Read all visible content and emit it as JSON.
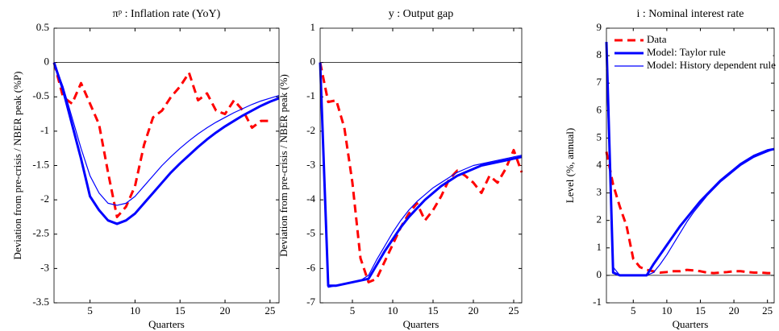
{
  "chart_data": [
    {
      "type": "line",
      "title": "πᵖ : Inflation rate (YoY)",
      "x_label": "Quarters",
      "y_label": "Deviation from pre-crisis / NBER peak (%P)",
      "x": [
        1,
        2,
        3,
        4,
        5,
        6,
        7,
        8,
        9,
        10,
        11,
        12,
        13,
        14,
        15,
        16,
        17,
        18,
        19,
        20,
        21,
        22,
        23,
        24,
        25,
        26
      ],
      "xlim": [
        1,
        26
      ],
      "xticks": [
        5,
        10,
        15,
        20,
        25
      ],
      "ylim": [
        -3.5,
        0.5
      ],
      "yticks": [
        0.5,
        0,
        -0.5,
        -1,
        -1.5,
        -2,
        -2.5,
        -3,
        -3.5
      ],
      "zero_line": true,
      "series": [
        {
          "color": "#ff0000",
          "dashed": true,
          "line_width": 3,
          "values": [
            0,
            -0.5,
            -0.6,
            -0.3,
            -0.6,
            -0.9,
            -1.6,
            -2.25,
            -2.1,
            -1.8,
            -1.2,
            -0.8,
            -0.7,
            -0.5,
            -0.35,
            -0.15,
            -0.55,
            -0.45,
            -0.7,
            -0.75,
            -0.55,
            -0.7,
            -0.95,
            -0.85,
            -0.85,
            null
          ]
        },
        {
          "color": "#0000ff",
          "dashed": false,
          "line_width": 3,
          "values": [
            0,
            -0.4,
            -0.9,
            -1.4,
            -1.95,
            -2.15,
            -2.3,
            -2.35,
            -2.3,
            -2.2,
            -2.05,
            -1.9,
            -1.75,
            -1.6,
            -1.47,
            -1.35,
            -1.23,
            -1.12,
            -1.02,
            -0.93,
            -0.85,
            -0.77,
            -0.7,
            -0.63,
            -0.57,
            -0.52
          ]
        },
        {
          "color": "#0000ff",
          "dashed": false,
          "line_width": 1.2,
          "values": [
            0,
            -0.35,
            -0.8,
            -1.25,
            -1.65,
            -1.9,
            -2.05,
            -2.08,
            -2.05,
            -1.95,
            -1.8,
            -1.65,
            -1.5,
            -1.37,
            -1.25,
            -1.14,
            -1.04,
            -0.95,
            -0.87,
            -0.8,
            -0.73,
            -0.67,
            -0.61,
            -0.56,
            -0.52,
            -0.48
          ]
        }
      ]
    },
    {
      "type": "line",
      "title": "y : Output gap",
      "x_label": "Quarters",
      "y_label": "Deviation from pre-crisis / NBER peak (%)",
      "x": [
        1,
        2,
        3,
        4,
        5,
        6,
        7,
        8,
        9,
        10,
        11,
        12,
        13,
        14,
        15,
        16,
        17,
        18,
        19,
        20,
        21,
        22,
        23,
        24,
        25,
        26
      ],
      "xlim": [
        1,
        26
      ],
      "xticks": [
        5,
        10,
        15,
        20,
        25
      ],
      "ylim": [
        -7,
        1
      ],
      "yticks": [
        1,
        0,
        -1,
        -2,
        -3,
        -4,
        -5,
        -6,
        -7
      ],
      "zero_line": true,
      "series": [
        {
          "color": "#ff0000",
          "dashed": true,
          "line_width": 3,
          "values": [
            0,
            -1.15,
            -1.1,
            -1.9,
            -3.5,
            -5.7,
            -6.4,
            -6.3,
            -5.8,
            -5.3,
            -4.8,
            -4.4,
            -4.1,
            -4.6,
            -4.3,
            -3.9,
            -3.4,
            -3.15,
            -3.3,
            -3.5,
            -3.8,
            -3.3,
            -3.5,
            -3.1,
            -2.55,
            -3.2
          ]
        },
        {
          "color": "#0000ff",
          "dashed": false,
          "line_width": 3,
          "values": [
            0,
            -6.5,
            -6.5,
            -6.45,
            -6.4,
            -6.35,
            -6.3,
            -5.9,
            -5.5,
            -5.15,
            -4.8,
            -4.5,
            -4.25,
            -4.0,
            -3.8,
            -3.6,
            -3.45,
            -3.3,
            -3.2,
            -3.1,
            -3.0,
            -2.95,
            -2.9,
            -2.85,
            -2.8,
            -2.75
          ]
        },
        {
          "color": "#0000ff",
          "dashed": false,
          "line_width": 1.2,
          "values": [
            0,
            -6.55,
            -6.5,
            -6.45,
            -6.4,
            -6.35,
            -6.2,
            -5.75,
            -5.35,
            -4.95,
            -4.6,
            -4.3,
            -4.05,
            -3.85,
            -3.65,
            -3.5,
            -3.35,
            -3.2,
            -3.1,
            -3.0,
            -2.95,
            -2.9,
            -2.85,
            -2.8,
            -2.75,
            -2.7
          ]
        }
      ]
    },
    {
      "type": "line",
      "title": "i : Nominal interest rate",
      "x_label": "Quarters",
      "y_label": "Level (%, annual)",
      "x": [
        1,
        2,
        3,
        4,
        5,
        6,
        7,
        8,
        9,
        10,
        11,
        12,
        13,
        14,
        15,
        16,
        17,
        18,
        19,
        20,
        21,
        22,
        23,
        24,
        25,
        26
      ],
      "xlim": [
        1,
        26
      ],
      "xticks": [
        5,
        10,
        15,
        20,
        25
      ],
      "ylim": [
        -1,
        9
      ],
      "yticks": [
        -1,
        0,
        1,
        2,
        3,
        4,
        5,
        6,
        7,
        8,
        9
      ],
      "zero_line": true,
      "legend": "upper left",
      "series": [
        {
          "name": "Data",
          "color": "#ff0000",
          "dashed": true,
          "line_width": 3,
          "values": [
            4.5,
            3.3,
            2.5,
            1.8,
            0.6,
            0.3,
            0.2,
            0.15,
            0.1,
            0.12,
            0.15,
            0.15,
            0.2,
            0.18,
            0.15,
            0.1,
            0.08,
            0.1,
            0.12,
            0.15,
            0.15,
            0.12,
            0.1,
            0.1,
            0.08,
            0.08
          ]
        },
        {
          "name": "Model: Taylor rule",
          "color": "#0000ff",
          "dashed": false,
          "line_width": 3,
          "values": [
            8.5,
            0.1,
            0,
            0,
            0,
            0,
            0,
            0.4,
            0.75,
            1.1,
            1.45,
            1.8,
            2.1,
            2.4,
            2.7,
            2.95,
            3.2,
            3.45,
            3.65,
            3.85,
            4.05,
            4.2,
            4.35,
            4.45,
            4.55,
            4.6
          ]
        },
        {
          "name": "Model: History dependent rule",
          "color": "#0000ff",
          "dashed": false,
          "line_width": 1.2,
          "values": [
            7.5,
            0.3,
            0,
            0,
            0,
            0,
            0,
            0.1,
            0.4,
            0.75,
            1.15,
            1.55,
            1.95,
            2.3,
            2.6,
            2.9,
            3.15,
            3.4,
            3.6,
            3.8,
            4.0,
            4.15,
            4.3,
            4.4,
            4.5,
            4.6
          ]
        }
      ]
    }
  ]
}
